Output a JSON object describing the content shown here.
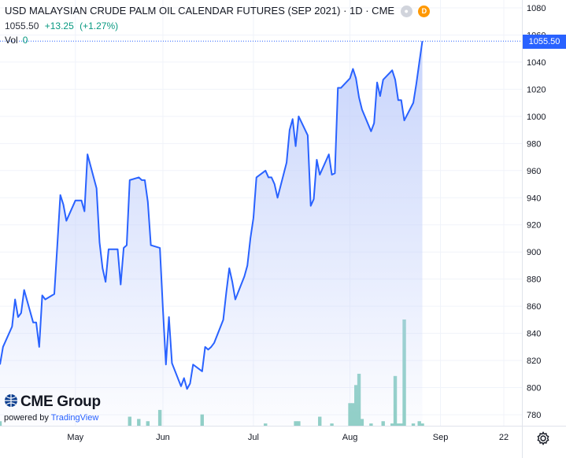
{
  "legend": {
    "title": "USD MALAYSIAN CRUDE PALM OIL CALENDAR FUTURES (SEP 2021) · 1D · CME",
    "last": "1055.50",
    "change": "+13.25",
    "change_pct": "(+1.27%)",
    "vol_label": "Vol",
    "vol_value": "0",
    "status_icon": "market-status-icon",
    "delay_badge": "D"
  },
  "price_tag": "1055.50",
  "branding": {
    "logo_text": "CME Group",
    "powered_by": "powered by",
    "tradingview": "TradingView"
  },
  "settings_icon": "gear-icon",
  "colors": {
    "line": "#2962ff",
    "area_top": "#c5d2fb",
    "volume": "#8ecfc4",
    "axis_text": "#131722",
    "grid": "#f0f3fa"
  },
  "chart_data": {
    "type": "area",
    "title": "USD MALAYSIAN CRUDE PALM OIL CALENDAR FUTURES (SEP 2021)",
    "interval": "1D",
    "exchange": "CME",
    "xlabel": "",
    "ylabel": "",
    "ylim": [
      770,
      1085
    ],
    "y_ticks": [
      780,
      800,
      820,
      840,
      860,
      880,
      900,
      920,
      940,
      960,
      980,
      1000,
      1020,
      1040,
      1060,
      1080
    ],
    "x_tick_labels": [
      {
        "label": "May",
        "date": "2021-05-03"
      },
      {
        "label": "Jun",
        "date": "2021-06-01"
      },
      {
        "label": "Jul",
        "date": "2021-07-01"
      },
      {
        "label": "Aug",
        "date": "2021-08-02"
      },
      {
        "label": "Sep",
        "date": "2021-09-01"
      },
      {
        "label": "22",
        "date": "2021-09-22"
      }
    ],
    "xlim": [
      "2021-04-08",
      "2021-09-28"
    ],
    "series": [
      {
        "values": [
          [
            "2021-04-08",
            817
          ],
          [
            "2021-04-09",
            830
          ],
          [
            "2021-04-12",
            845
          ],
          [
            "2021-04-13",
            865
          ],
          [
            "2021-04-14",
            852
          ],
          [
            "2021-04-15",
            855
          ],
          [
            "2021-04-16",
            872
          ],
          [
            "2021-04-19",
            848
          ],
          [
            "2021-04-20",
            848
          ],
          [
            "2021-04-21",
            830
          ],
          [
            "2021-04-22",
            868
          ],
          [
            "2021-04-23",
            865
          ],
          [
            "2021-04-26",
            869
          ],
          [
            "2021-04-27",
            905
          ],
          [
            "2021-04-28",
            942
          ],
          [
            "2021-04-29",
            935
          ],
          [
            "2021-04-30",
            923
          ],
          [
            "2021-05-03",
            938
          ],
          [
            "2021-05-04",
            938
          ],
          [
            "2021-05-05",
            938
          ],
          [
            "2021-05-06",
            930
          ],
          [
            "2021-05-07",
            972
          ],
          [
            "2021-05-10",
            947
          ],
          [
            "2021-05-11",
            907
          ],
          [
            "2021-05-12",
            888
          ],
          [
            "2021-05-13",
            878
          ],
          [
            "2021-05-14",
            902
          ],
          [
            "2021-05-17",
            902
          ],
          [
            "2021-05-18",
            876
          ],
          [
            "2021-05-19",
            903
          ],
          [
            "2021-05-20",
            905
          ],
          [
            "2021-05-21",
            953
          ],
          [
            "2021-05-24",
            955
          ],
          [
            "2021-05-25",
            953
          ],
          [
            "2021-05-26",
            953
          ],
          [
            "2021-05-27",
            937
          ],
          [
            "2021-05-28",
            905
          ],
          [
            "2021-05-31",
            903
          ],
          [
            "2021-06-01",
            858
          ],
          [
            "2021-06-02",
            817
          ],
          [
            "2021-06-03",
            852
          ],
          [
            "2021-06-04",
            818
          ],
          [
            "2021-06-07",
            801
          ],
          [
            "2021-06-08",
            807
          ],
          [
            "2021-06-09",
            799
          ],
          [
            "2021-06-10",
            803
          ],
          [
            "2021-06-11",
            817
          ],
          [
            "2021-06-14",
            812
          ],
          [
            "2021-06-15",
            830
          ],
          [
            "2021-06-16",
            828
          ],
          [
            "2021-06-17",
            830
          ],
          [
            "2021-06-18",
            833
          ],
          [
            "2021-06-21",
            850
          ],
          [
            "2021-06-22",
            870
          ],
          [
            "2021-06-23",
            888
          ],
          [
            "2021-06-24",
            878
          ],
          [
            "2021-06-25",
            865
          ],
          [
            "2021-06-28",
            882
          ],
          [
            "2021-06-29",
            890
          ],
          [
            "2021-06-30",
            910
          ],
          [
            "2021-07-01",
            925
          ],
          [
            "2021-07-02",
            955
          ],
          [
            "2021-07-05",
            960
          ],
          [
            "2021-07-06",
            955
          ],
          [
            "2021-07-07",
            955
          ],
          [
            "2021-07-08",
            950
          ],
          [
            "2021-07-09",
            940
          ],
          [
            "2021-07-12",
            966
          ],
          [
            "2021-07-13",
            990
          ],
          [
            "2021-07-14",
            998
          ],
          [
            "2021-07-15",
            978
          ],
          [
            "2021-07-16",
            1000
          ],
          [
            "2021-07-19",
            986
          ],
          [
            "2021-07-20",
            934
          ],
          [
            "2021-07-21",
            939
          ],
          [
            "2021-07-22",
            968
          ],
          [
            "2021-07-23",
            957
          ],
          [
            "2021-07-26",
            972
          ],
          [
            "2021-07-27",
            957
          ],
          [
            "2021-07-28",
            958
          ],
          [
            "2021-07-29",
            1021
          ],
          [
            "2021-07-30",
            1021
          ],
          [
            "2021-08-02",
            1028
          ],
          [
            "2021-08-03",
            1035
          ],
          [
            "2021-08-04",
            1028
          ],
          [
            "2021-08-05",
            1014
          ],
          [
            "2021-08-06",
            1005
          ],
          [
            "2021-08-09",
            989
          ],
          [
            "2021-08-10",
            995
          ],
          [
            "2021-08-11",
            1025
          ],
          [
            "2021-08-12",
            1015
          ],
          [
            "2021-08-13",
            1027
          ],
          [
            "2021-08-16",
            1034
          ],
          [
            "2021-08-17",
            1027
          ],
          [
            "2021-08-18",
            1012
          ],
          [
            "2021-08-19",
            1012
          ],
          [
            "2021-08-20",
            997
          ],
          [
            "2021-08-23",
            1010
          ],
          [
            "2021-08-24",
            1024
          ],
          [
            "2021-08-25",
            1040
          ],
          [
            "2021-08-26",
            1055.5
          ]
        ]
      }
    ],
    "volume": {
      "name": "Vol",
      "unit_note": "relative bar heights (no volume axis printed)",
      "values": [
        [
          "2021-04-08",
          2
        ],
        [
          "2021-05-21",
          4
        ],
        [
          "2021-05-24",
          3
        ],
        [
          "2021-05-27",
          2
        ],
        [
          "2021-05-31",
          7
        ],
        [
          "2021-06-14",
          5
        ],
        [
          "2021-07-05",
          1
        ],
        [
          "2021-07-15",
          2
        ],
        [
          "2021-07-16",
          2
        ],
        [
          "2021-07-23",
          4
        ],
        [
          "2021-07-27",
          1
        ],
        [
          "2021-08-02",
          10
        ],
        [
          "2021-08-03",
          10
        ],
        [
          "2021-08-04",
          18
        ],
        [
          "2021-08-05",
          23
        ],
        [
          "2021-08-06",
          3
        ],
        [
          "2021-08-09",
          1
        ],
        [
          "2021-08-13",
          2
        ],
        [
          "2021-08-16",
          1
        ],
        [
          "2021-08-17",
          22
        ],
        [
          "2021-08-18",
          1
        ],
        [
          "2021-08-19",
          1
        ],
        [
          "2021-08-20",
          47
        ],
        [
          "2021-08-23",
          1
        ],
        [
          "2021-08-25",
          2
        ],
        [
          "2021-08-26",
          1
        ]
      ]
    },
    "last_price": 1055.5,
    "grid": true,
    "legend_position": "top-left"
  }
}
